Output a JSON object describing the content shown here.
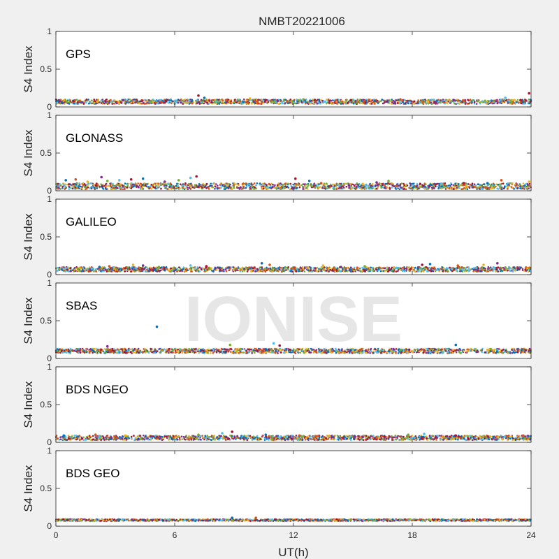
{
  "figure": {
    "title": "NMBT20221006",
    "xlabel": "UT(h)",
    "watermark": "IONISE",
    "background_color": "#f0f0f0",
    "axes_color": "#ffffff",
    "series_colors": [
      "#0072bd",
      "#d95319",
      "#edb120",
      "#7e2f8e",
      "#77ac30",
      "#4dbeee",
      "#a2142f"
    ]
  },
  "chart_data": [
    {
      "type": "scatter",
      "system": "GPS",
      "ylabel": "S4 Index",
      "xlim": [
        0,
        24
      ],
      "ylim": [
        0,
        1
      ],
      "xticks": [
        0,
        6,
        12,
        18,
        24
      ],
      "yticks": [
        0,
        0.5,
        1
      ],
      "ytick_labels": [
        "0",
        "0.5",
        "1"
      ],
      "baseline_s4": 0.07,
      "spread_s4": 0.03,
      "series": [
        {
          "x": [
            0.3,
            1.2,
            2.1,
            3.4,
            4.8,
            6.0,
            7.2,
            7.5,
            8.6,
            9.8,
            11.2,
            12.5,
            13.6,
            14.9,
            16.1,
            17.4,
            18.8,
            20.1,
            21.3,
            22.7,
            23.9
          ],
          "y": [
            0.06,
            0.08,
            0.07,
            0.09,
            0.06,
            0.08,
            0.15,
            0.12,
            0.09,
            0.11,
            0.08,
            0.1,
            0.07,
            0.09,
            0.08,
            0.1,
            0.07,
            0.09,
            0.08,
            0.12,
            0.18
          ]
        }
      ]
    },
    {
      "type": "scatter",
      "system": "GLONASS",
      "ylabel": "S4 Index",
      "xlim": [
        0,
        24
      ],
      "ylim": [
        0,
        1
      ],
      "xticks": [
        0,
        6,
        12,
        18,
        24
      ],
      "yticks": [
        0,
        0.5,
        1
      ],
      "ytick_labels": [
        "0",
        "0.5",
        "1"
      ],
      "baseline_s4": 0.06,
      "spread_s4": 0.04,
      "series": [
        {
          "x": [
            0.5,
            1.0,
            1.6,
            2.3,
            2.6,
            3.2,
            3.8,
            4.4
          ],
          "y": [
            0.14,
            0.15,
            0.12,
            0.18,
            0.13,
            0.14,
            0.15,
            0.16
          ]
        },
        {
          "x": [
            5.5,
            6.2,
            6.8,
            7.1
          ],
          "y": [
            0.12,
            0.14,
            0.17,
            0.19
          ]
        },
        {
          "x": [
            12.1,
            12.8,
            13.4,
            14.0,
            14.8
          ],
          "y": [
            0.16,
            0.13,
            0.1,
            0.08,
            0.07
          ]
        },
        {
          "x": [
            15.5,
            16.2,
            16.8
          ],
          "y": [
            0.09,
            0.11,
            0.13
          ]
        },
        {
          "x": [
            19.5,
            20.6,
            21.8,
            22.5,
            23.9
          ],
          "y": [
            0.09,
            0.1,
            0.1,
            0.14,
            0.12
          ]
        }
      ]
    },
    {
      "type": "scatter",
      "system": "GALILEO",
      "ylabel": "S4 Index",
      "xlim": [
        0,
        24
      ],
      "ylim": [
        0,
        1
      ],
      "xticks": [
        0,
        6,
        12,
        18,
        24
      ],
      "yticks": [
        0,
        0.5,
        1
      ],
      "ytick_labels": [
        "0",
        "0.5",
        "1"
      ],
      "baseline_s4": 0.07,
      "spread_s4": 0.03,
      "series": [
        {
          "x": [
            2.2,
            2.7,
            3.9,
            4.4,
            5.2,
            6.8,
            7.6,
            10.4,
            10.8,
            13.5,
            14.4,
            15.6,
            17.2,
            18.5,
            18.9,
            20.3,
            21.6,
            22.3
          ],
          "y": [
            0.1,
            0.11,
            0.13,
            0.12,
            0.1,
            0.12,
            0.11,
            0.15,
            0.13,
            0.12,
            0.1,
            0.11,
            0.09,
            0.13,
            0.14,
            0.12,
            0.13,
            0.15
          ]
        }
      ]
    },
    {
      "type": "scatter",
      "system": "SBAS",
      "ylabel": "S4 Index",
      "xlim": [
        0,
        24
      ],
      "ylim": [
        0,
        1
      ],
      "xticks": [
        0,
        6,
        12,
        18,
        24
      ],
      "yticks": [
        0,
        0.5,
        1
      ],
      "ytick_labels": [
        "0",
        "0.5",
        "1"
      ],
      "baseline_s4": 0.1,
      "spread_s4": 0.03,
      "series": [
        {
          "x": [
            5.1
          ],
          "y": [
            0.42
          ]
        },
        {
          "x": [
            2.6,
            8.8,
            11.0,
            11.3,
            20.2
          ],
          "y": [
            0.16,
            0.18,
            0.2,
            0.17,
            0.18
          ]
        }
      ]
    },
    {
      "type": "scatter",
      "system": "BDS NGEO",
      "ylabel": "S4 Index",
      "xlim": [
        0,
        24
      ],
      "ylim": [
        0,
        1
      ],
      "xticks": [
        0,
        6,
        12,
        18,
        24
      ],
      "yticks": [
        0,
        0.5,
        1
      ],
      "ytick_labels": [
        "0",
        "0.5",
        "1"
      ],
      "baseline_s4": 0.06,
      "spread_s4": 0.03,
      "series": [
        {
          "x": [
            0.4,
            2.0,
            3.5,
            4.8,
            7.2,
            8.4,
            8.9,
            10.6,
            12.3,
            13.8,
            15.5,
            17.8,
            18.6,
            20.2,
            22.1,
            23.6
          ],
          "y": [
            0.09,
            0.1,
            0.09,
            0.08,
            0.1,
            0.12,
            0.14,
            0.1,
            0.09,
            0.08,
            0.07,
            0.1,
            0.11,
            0.09,
            0.07,
            0.09
          ]
        }
      ]
    },
    {
      "type": "scatter",
      "system": "BDS GEO",
      "ylabel": "S4 Index",
      "xlim": [
        0,
        24
      ],
      "ylim": [
        0,
        1
      ],
      "xticks": [
        0,
        6,
        12,
        18,
        24
      ],
      "yticks": [
        0,
        0.5,
        1
      ],
      "ytick_labels": [
        "0",
        "0.5",
        "1"
      ],
      "baseline_s4": 0.08,
      "spread_s4": 0.012,
      "series": [
        {
          "x": [
            8.9,
            10.1
          ],
          "y": [
            0.11,
            0.11
          ]
        }
      ]
    }
  ]
}
